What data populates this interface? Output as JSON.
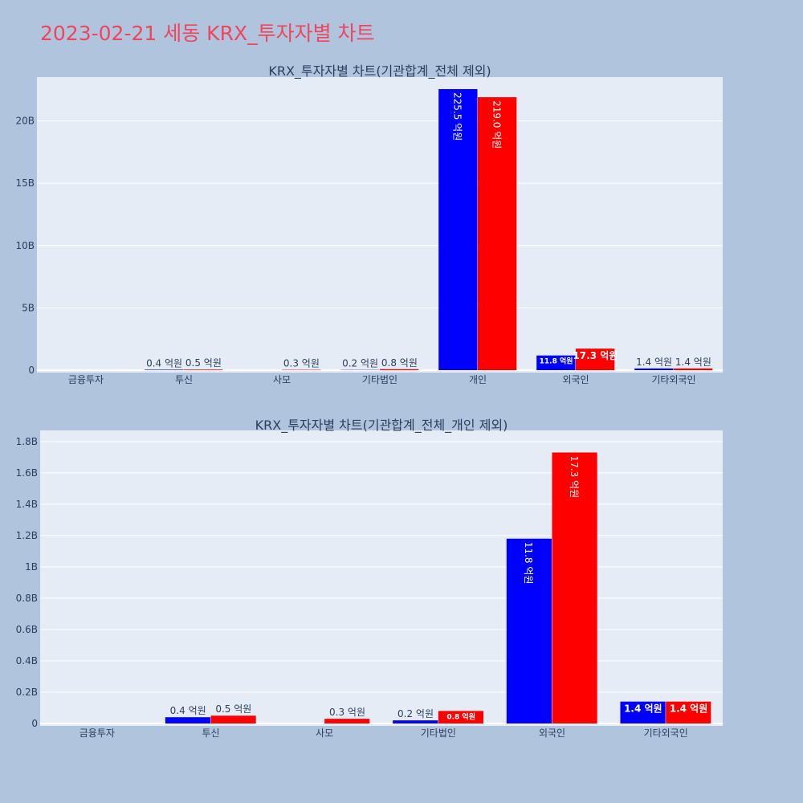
{
  "page_title": "2023-02-21 세동 KRX_투자자별 차트",
  "colors": {
    "background": "#b0c4de",
    "plot_bg": "#e5ecf6",
    "title": "#f0455b",
    "series_a": "#0000ff",
    "series_b": "#ff0000"
  },
  "chart_data": [
    {
      "type": "bar",
      "title": "KRX_투자자별 차트(기관합계_전체 제외)",
      "xlabel": "",
      "ylabel": "",
      "categories": [
        "금융투자",
        "투신",
        "사모",
        "기타법인",
        "개인",
        "외국인",
        "기타외국인"
      ],
      "ylim": [
        0,
        23000000000
      ],
      "yticks": [
        0,
        5000000000,
        10000000000,
        15000000000,
        20000000000
      ],
      "ytick_labels": [
        "0",
        "5B",
        "10B",
        "15B",
        "20B"
      ],
      "grid": true,
      "series": [
        {
          "values": [
            0,
            40000000,
            0,
            20000000,
            22550000000,
            1180000000,
            140000000
          ],
          "labels": [
            "",
            "0.4 억원",
            "",
            "0.2 억원",
            "225.5 억원",
            "11.8 억원",
            "1.4 억원"
          ]
        },
        {
          "values": [
            0,
            50000000,
            30000000,
            80000000,
            21900000000,
            1730000000,
            140000000
          ],
          "labels": [
            "",
            "0.5 억원",
            "0.3 억원",
            "0.8 억원",
            "219.0 억원",
            "17.3 억원",
            "1.4 억원"
          ]
        }
      ]
    },
    {
      "type": "bar",
      "title": "KRX_투자자별 차트(기관합계_전체_개인 제외)",
      "xlabel": "",
      "ylabel": "",
      "categories": [
        "금융투자",
        "투신",
        "사모",
        "기타법인",
        "외국인",
        "기타외국인"
      ],
      "ylim": [
        0,
        1830000000
      ],
      "yticks": [
        0,
        200000000,
        400000000,
        600000000,
        800000000,
        1000000000,
        1200000000,
        1400000000,
        1600000000,
        1800000000
      ],
      "ytick_labels": [
        "0",
        "0.2B",
        "0.4B",
        "0.6B",
        "0.8B",
        "1B",
        "1.2B",
        "1.4B",
        "1.6B",
        "1.8B"
      ],
      "grid": true,
      "series": [
        {
          "values": [
            0,
            40000000,
            0,
            20000000,
            1180000000,
            140000000
          ],
          "labels": [
            "",
            "0.4 억원",
            "",
            "0.2 억원",
            "11.8 억원",
            "1.4 억원"
          ]
        },
        {
          "values": [
            0,
            50000000,
            30000000,
            80000000,
            1730000000,
            140000000
          ],
          "labels": [
            "",
            "0.5 억원",
            "0.3 억원",
            "0.8 억원",
            "17.3 억원",
            "1.4 억원"
          ]
        }
      ]
    }
  ]
}
